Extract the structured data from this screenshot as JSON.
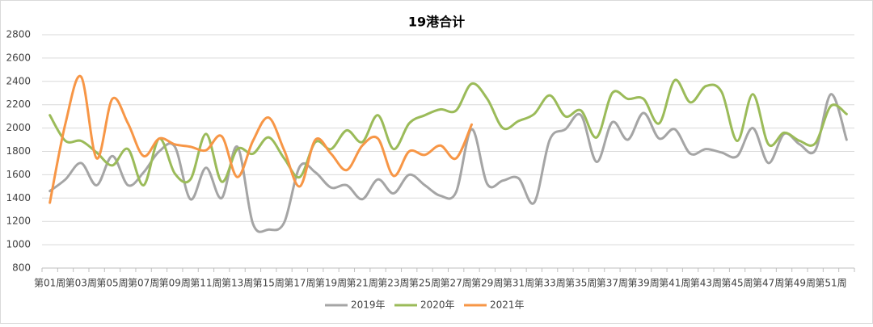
{
  "chart_data": {
    "type": "line",
    "title": "19港合计",
    "categories": [
      "第01周",
      null,
      "第03周",
      null,
      "第05周",
      null,
      "第07周",
      null,
      "第09周",
      null,
      "第11周",
      null,
      "第13周",
      null,
      "第15周",
      null,
      "第17周",
      null,
      "第19周",
      null,
      "第21周",
      null,
      "第23周",
      null,
      "第25周",
      null,
      "第27周",
      null,
      "第29周",
      null,
      "第31周",
      null,
      "第33周",
      null,
      "第35周",
      null,
      "第37周",
      null,
      "第39周",
      null,
      "第41周",
      null,
      "第43周",
      null,
      "第45周",
      null,
      "第47周",
      null,
      "第49周",
      null,
      "第51周",
      null
    ],
    "series": [
      {
        "name": "2019年",
        "color": "#a5a5a5",
        "values": [
          1460,
          1560,
          1700,
          1510,
          1760,
          1510,
          1620,
          1800,
          1840,
          1390,
          1660,
          1400,
          1840,
          1180,
          1130,
          1190,
          1670,
          1620,
          1490,
          1510,
          1390,
          1560,
          1440,
          1600,
          1510,
          1420,
          1450,
          1990,
          1520,
          1550,
          1570,
          1360,
          1900,
          1990,
          2110,
          1710,
          2050,
          1900,
          2130,
          1910,
          1990,
          1780,
          1820,
          1790,
          1760,
          2000,
          1700,
          1950,
          1860,
          1810,
          2290,
          1900
        ]
      },
      {
        "name": "2020年",
        "color": "#9bbb59",
        "values": [
          2110,
          1890,
          1890,
          1790,
          1680,
          1820,
          1510,
          1910,
          1610,
          1560,
          1950,
          1540,
          1820,
          1780,
          1920,
          1740,
          1580,
          1880,
          1820,
          1980,
          1880,
          2110,
          1820,
          2040,
          2110,
          2160,
          2150,
          2380,
          2250,
          2000,
          2060,
          2120,
          2280,
          2100,
          2150,
          1920,
          2300,
          2250,
          2250,
          2040,
          2410,
          2220,
          2360,
          2310,
          1890,
          2290,
          1860,
          1960,
          1890,
          1870,
          2190,
          2120
        ]
      },
      {
        "name": "2021年",
        "color": "#f79646",
        "values": [
          1360,
          2040,
          2440,
          1740,
          2250,
          2040,
          1760,
          1910,
          1860,
          1840,
          1810,
          1930,
          1580,
          1890,
          2090,
          1810,
          1500,
          1900,
          1780,
          1640,
          1850,
          1910,
          1590,
          1800,
          1770,
          1850,
          1740,
          2030,
          null,
          null,
          null,
          null,
          null,
          null,
          null,
          null,
          null,
          null,
          null,
          null,
          null,
          null,
          null,
          null,
          null,
          null,
          null,
          null,
          null,
          null,
          null,
          null
        ]
      }
    ],
    "ylim": [
      800,
      2800
    ],
    "yticks": [
      800,
      1000,
      1200,
      1400,
      1600,
      1800,
      2000,
      2200,
      2400,
      2600,
      2800
    ],
    "grid": true,
    "legend": "bottom"
  }
}
